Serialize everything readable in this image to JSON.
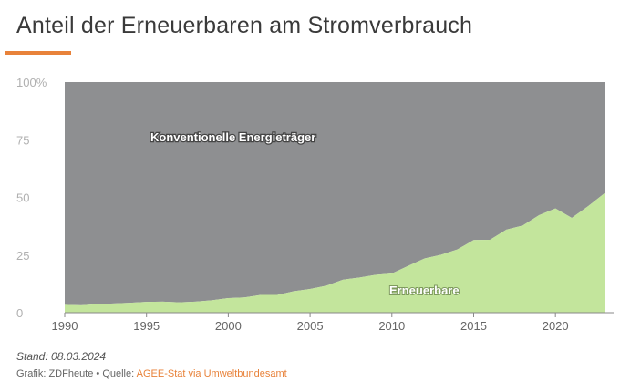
{
  "title": "Anteil der Erneuerbaren am Stromverbrauch",
  "footer": {
    "date": "Stand: 08.03.2024",
    "source_prefix": "Grafik: ZDFheute • Quelle: ",
    "source_link": "AGEE-Stat via Umweltbundesamt"
  },
  "colors": {
    "renewable": "#c3e59c",
    "conventional": "#8e8f91",
    "accent": "#e8823a"
  },
  "chart_data": {
    "type": "area",
    "stacked": true,
    "x": [
      1990,
      1991,
      1992,
      1993,
      1994,
      1995,
      1996,
      1997,
      1998,
      1999,
      2000,
      2001,
      2002,
      2003,
      2004,
      2005,
      2006,
      2007,
      2008,
      2009,
      2010,
      2011,
      2012,
      2013,
      2014,
      2015,
      2016,
      2017,
      2018,
      2019,
      2020,
      2021,
      2022,
      2023
    ],
    "series": [
      {
        "name": "Erneuerbare",
        "values": [
          3.4,
          3.2,
          3.7,
          4.0,
          4.3,
          4.7,
          4.8,
          4.5,
          4.8,
          5.4,
          6.3,
          6.6,
          7.7,
          7.7,
          9.3,
          10.3,
          11.7,
          14.3,
          15.2,
          16.4,
          17.0,
          20.3,
          23.5,
          25.1,
          27.4,
          31.5,
          31.6,
          36.0,
          37.8,
          42.3,
          45.2,
          41.1,
          46.2,
          51.8
        ]
      },
      {
        "name": "Konventionelle Energieträger",
        "values": [
          96.6,
          96.8,
          96.3,
          96.0,
          95.7,
          95.3,
          95.2,
          95.5,
          95.2,
          94.6,
          93.7,
          93.4,
          92.3,
          92.3,
          90.7,
          89.7,
          88.3,
          85.7,
          84.8,
          83.6,
          83.0,
          79.7,
          76.5,
          74.9,
          72.6,
          68.5,
          68.4,
          64.0,
          62.2,
          57.7,
          54.8,
          58.9,
          53.8,
          48.2
        ]
      }
    ],
    "ylim": [
      0,
      100
    ],
    "yticks": [
      "0",
      "25",
      "50",
      "75",
      "100%"
    ],
    "xticks": [
      "1990",
      "1995",
      "2000",
      "2005",
      "2010",
      "2015",
      "2020"
    ],
    "annotations": [
      "Konventionelle Energieträger",
      "Erneuerbare"
    ]
  }
}
